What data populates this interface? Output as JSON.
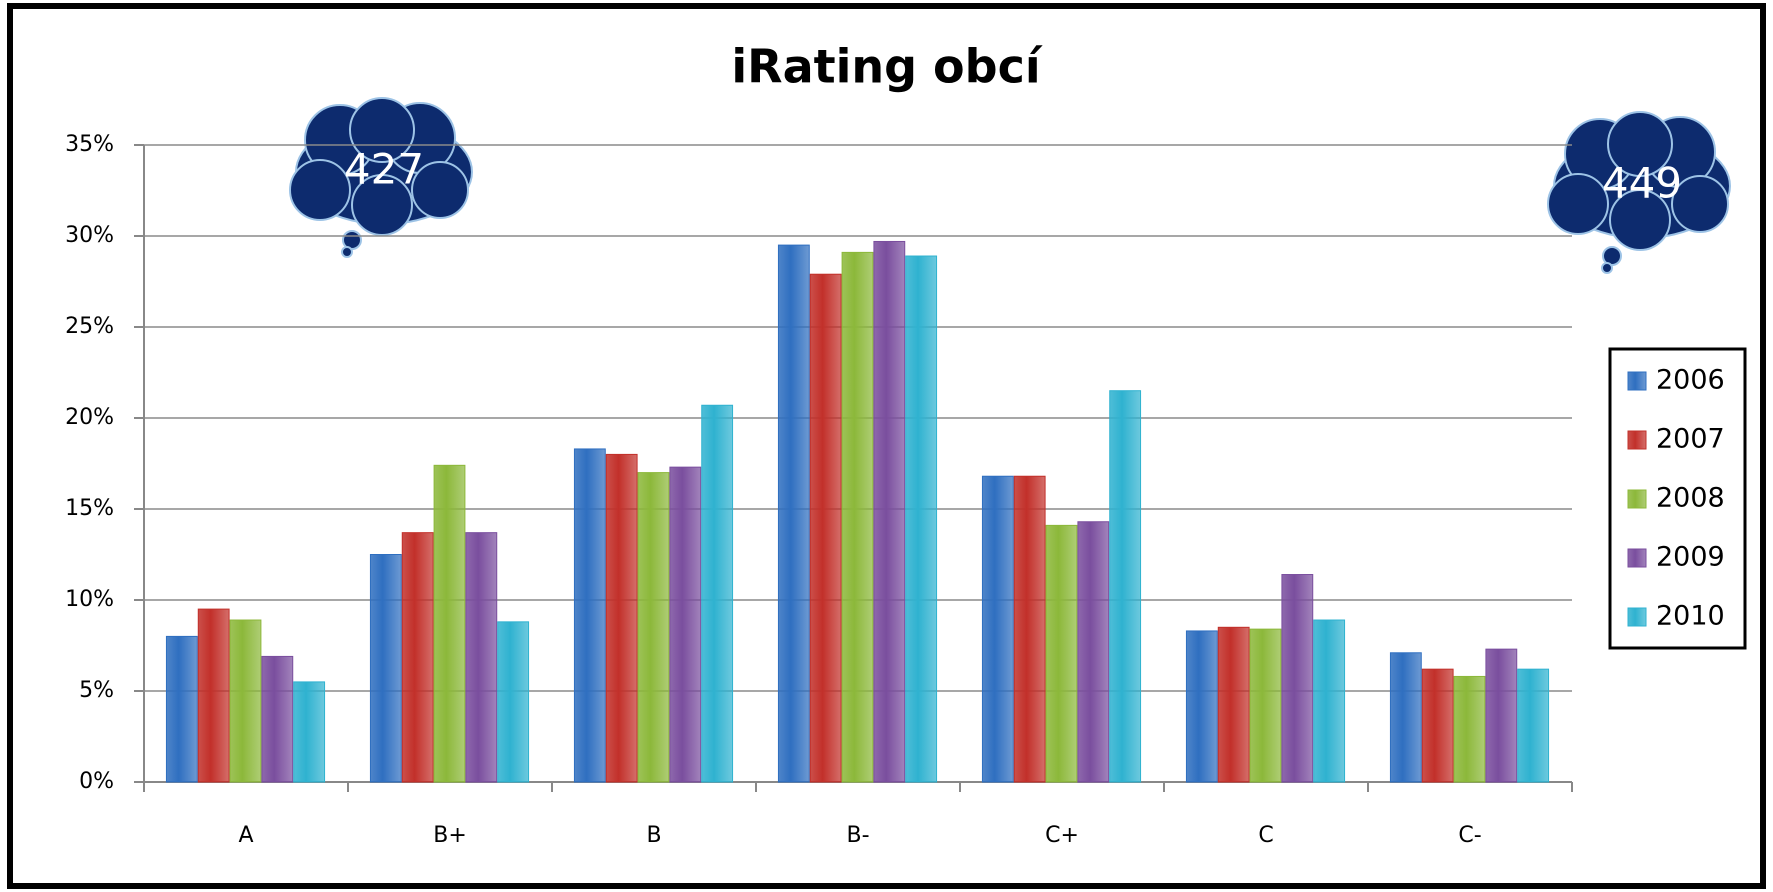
{
  "chart_data": {
    "type": "bar",
    "title": "iRating obcí",
    "categories": [
      "A",
      "B+",
      "B",
      "B-",
      "C+",
      "C",
      "C-"
    ],
    "series": [
      {
        "name": "2006",
        "color": "#2f6fc0",
        "values": [
          8.0,
          12.5,
          18.3,
          29.5,
          16.8,
          8.3,
          7.1
        ]
      },
      {
        "name": "2007",
        "color": "#c2302a",
        "values": [
          9.5,
          13.7,
          18.0,
          27.9,
          16.8,
          8.5,
          6.2
        ]
      },
      {
        "name": "2008",
        "color": "#8cb83a",
        "values": [
          8.9,
          17.4,
          17.0,
          29.1,
          14.1,
          8.4,
          5.8
        ]
      },
      {
        "name": "2009",
        "color": "#7a4e9e",
        "values": [
          6.9,
          13.7,
          17.3,
          29.7,
          14.3,
          11.4,
          7.3
        ]
      },
      {
        "name": "2010",
        "color": "#2fb2d0",
        "values": [
          5.5,
          8.8,
          20.7,
          28.9,
          21.5,
          8.9,
          6.2
        ]
      }
    ],
    "ylim": [
      0,
      35
    ],
    "yticks": [
      {
        "value": 0,
        "label": "0%"
      },
      {
        "value": 5,
        "label": "5%"
      },
      {
        "value": 10,
        "label": "10%"
      },
      {
        "value": 15,
        "label": "15%"
      },
      {
        "value": 20,
        "label": "20%"
      },
      {
        "value": 25,
        "label": "25%"
      },
      {
        "value": 30,
        "label": "30%"
      },
      {
        "value": 35,
        "label": "35%"
      }
    ],
    "grid": true,
    "legend": "right",
    "annotations": [
      "427",
      "449"
    ]
  }
}
